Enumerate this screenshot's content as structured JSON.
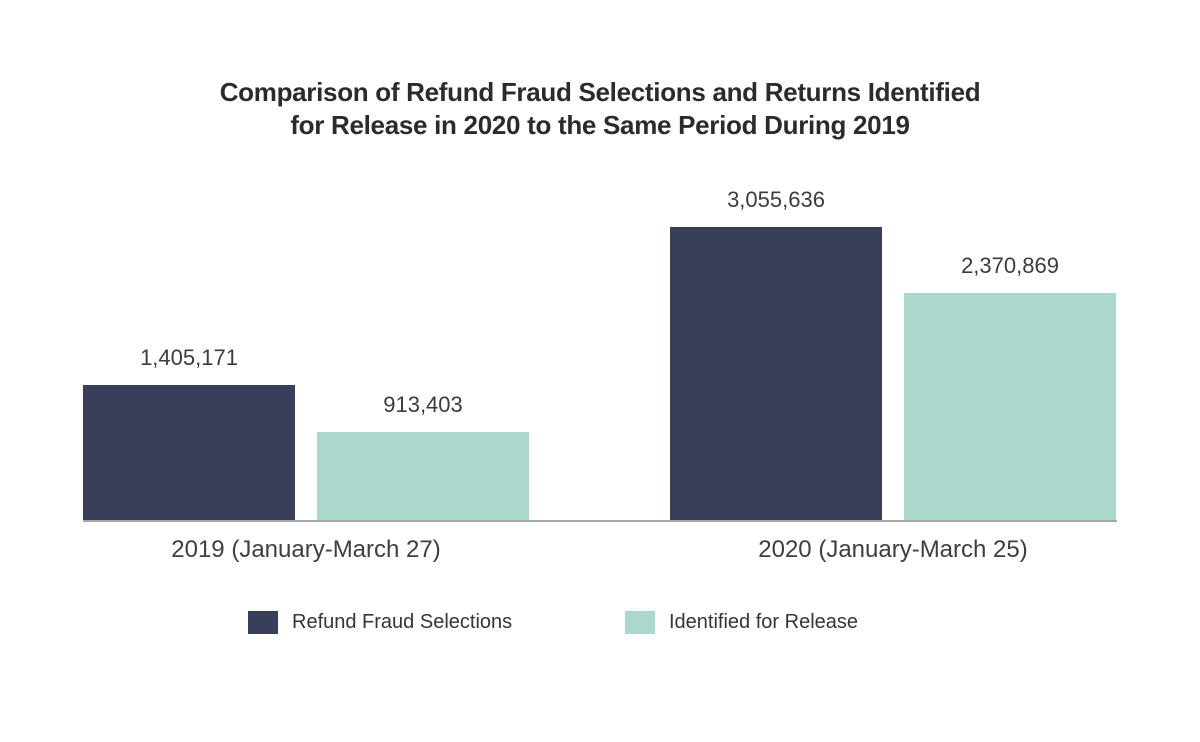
{
  "page": {
    "background_color": "#ffffff"
  },
  "chart_data": {
    "type": "bar",
    "title": "Comparison of Refund Fraud Selections and Returns Identified for Release in 2020 to the Same Period During 2019",
    "title_lines": [
      "Comparison of Refund Fraud Selections and Returns Identified",
      "for Release in 2020 to the Same Period During 2019"
    ],
    "categories": [
      "2019 (January-March 27)",
      "2020 (January-March 25)"
    ],
    "series": [
      {
        "name": "Refund Fraud Selections",
        "color": "#393e5a",
        "values": [
          1405171,
          3055636
        ],
        "value_labels": [
          "1,405,171",
          "3,055,636"
        ]
      },
      {
        "name": "Identified for Release",
        "color": "#aad8cc",
        "values": [
          913403,
          2370869
        ],
        "value_labels": [
          "913,403",
          "2,370,869"
        ]
      }
    ],
    "xlabel": "",
    "ylabel": "",
    "grid": false,
    "y_axis_ticks_visible": false,
    "legend_position": "bottom",
    "axis_line_color": "#a8a8a8",
    "value_label_color": "#3c3c3c",
    "category_label_color": "#3e3e3e",
    "title_color": "#2b2b2b"
  }
}
